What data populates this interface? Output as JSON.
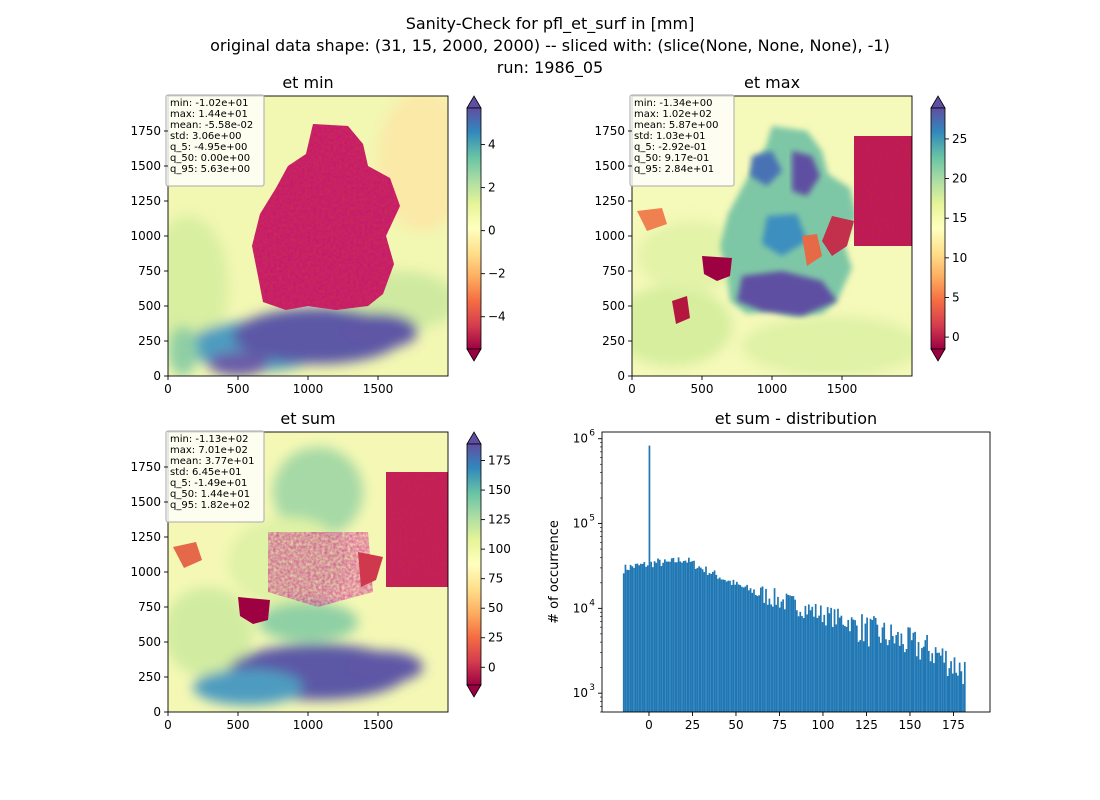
{
  "figure": {
    "title_lines": [
      "Sanity-Check for pfl_et_surf in [mm]",
      "original data shape: (31, 15, 2000, 2000) -- sliced with: (slice(None, None, None), -1)",
      "run: 1986_05"
    ]
  },
  "colors": {
    "hist_bar": "#1f77b4",
    "colormap": "Spectral",
    "stats_box_edge": "#aaaaaa"
  },
  "chart_data": [
    {
      "type": "heatmap",
      "title": "et min",
      "colormap": "Spectral",
      "xlim": [
        0,
        2000
      ],
      "ylim": [
        0,
        2000
      ],
      "x_ticks": [
        0,
        500,
        1000,
        1500
      ],
      "y_ticks": [
        0,
        250,
        500,
        750,
        1000,
        1250,
        1500,
        1750
      ],
      "colorbar": {
        "range": [
          -5.5,
          5.7
        ],
        "ticks": [
          -4,
          -2,
          0,
          2,
          4
        ],
        "extend": "both"
      },
      "stats": [
        "min: -1.02e+01",
        "max: 1.44e+01",
        "mean: -5.58e-02",
        "std: 3.06e+00",
        "q_5: -4.95e+00",
        "q_50: 0.00e+00",
        "q_95: 5.63e+00"
      ]
    },
    {
      "type": "heatmap",
      "title": "et max",
      "colormap": "Spectral",
      "xlim": [
        0,
        2000
      ],
      "ylim": [
        0,
        2000
      ],
      "x_ticks": [
        0,
        500,
        1000,
        1500
      ],
      "y_ticks": [
        0,
        250,
        500,
        750,
        1000,
        1250,
        1500,
        1750
      ],
      "colorbar": {
        "range": [
          -1.5,
          28.9
        ],
        "ticks": [
          0,
          5,
          10,
          15,
          20,
          25
        ],
        "extend": "both"
      },
      "stats": [
        "min: -1.34e+00",
        "max: 1.02e+02",
        "mean: 5.87e+00",
        "std: 1.03e+01",
        "q_5: -2.92e-01",
        "q_50: 9.17e-01",
        "q_95: 2.84e+01"
      ]
    },
    {
      "type": "heatmap",
      "title": "et sum",
      "colormap": "Spectral",
      "xlim": [
        0,
        2000
      ],
      "ylim": [
        0,
        2000
      ],
      "x_ticks": [
        0,
        500,
        1000,
        1500
      ],
      "y_ticks": [
        0,
        250,
        500,
        750,
        1000,
        1250,
        1500,
        1750
      ],
      "colorbar": {
        "range": [
          -15,
          189
        ],
        "ticks": [
          0,
          25,
          50,
          75,
          100,
          125,
          150,
          175
        ],
        "extend": "both"
      },
      "stats": [
        "min: -1.13e+02",
        "max: 7.01e+02",
        "mean: 3.77e+01",
        "std: 6.45e+01",
        "q_5: -1.49e+01",
        "q_50: 1.44e+01",
        "q_95: 1.82e+02"
      ]
    },
    {
      "type": "bar",
      "title": "et sum - distribution",
      "ylabel": "# of occurrence",
      "yscale": "log",
      "xlim": [
        -27,
        196
      ],
      "ylim": [
        600,
        1200000
      ],
      "x_ticks": [
        0,
        25,
        50,
        75,
        100,
        125,
        150,
        175
      ],
      "y_ticks": [
        1000,
        10000,
        100000,
        1000000
      ],
      "y_tick_labels": [
        [
          "10",
          "3"
        ],
        [
          "10",
          "4"
        ],
        [
          "10",
          "5"
        ],
        [
          "10",
          "6"
        ]
      ],
      "bin_range": [
        -15,
        182
      ],
      "bins": 200,
      "spike": {
        "x": 0,
        "count": 830000
      },
      "profile_x": [
        -15,
        -10,
        -5,
        -1,
        5,
        10,
        15,
        20,
        25,
        30,
        40,
        50,
        60,
        75,
        90,
        100,
        115,
        125,
        140,
        150,
        165,
        175,
        182
      ],
      "profile_count": [
        29000,
        31000,
        32000,
        33000,
        35000,
        34000,
        36000,
        38000,
        34000,
        30000,
        24000,
        19000,
        16000,
        12500,
        10000,
        8500,
        7000,
        5500,
        4500,
        3800,
        3000,
        2200,
        1800
      ]
    }
  ]
}
